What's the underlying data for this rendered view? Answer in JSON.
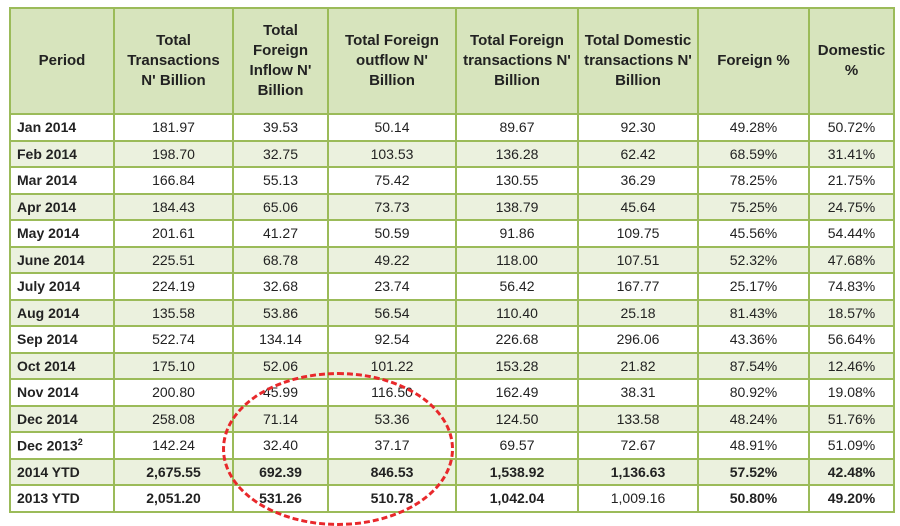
{
  "headers": [
    "Period",
    "Total Transactions N' Billion",
    "Total Foreign Inflow N' Billion",
    "Total Foreign outflow N' Billion",
    "Total Foreign transactions N' Billion",
    "Total Domestic transactions N' Billion",
    "Foreign %",
    "Domestic %"
  ],
  "rows": [
    {
      "period": "Jan 2014",
      "sup": "",
      "values": [
        "181.97",
        "39.53",
        "50.14",
        "89.67",
        "92.30",
        "49.28%",
        "50.72%"
      ]
    },
    {
      "period": "Feb 2014",
      "sup": "",
      "values": [
        "198.70",
        "32.75",
        "103.53",
        "136.28",
        "62.42",
        "68.59%",
        "31.41%"
      ]
    },
    {
      "period": "Mar 2014",
      "sup": "",
      "values": [
        "166.84",
        "55.13",
        "75.42",
        "130.55",
        "36.29",
        "78.25%",
        "21.75%"
      ]
    },
    {
      "period": "Apr 2014",
      "sup": "",
      "values": [
        "184.43",
        "65.06",
        "73.73",
        "138.79",
        "45.64",
        "75.25%",
        "24.75%"
      ]
    },
    {
      "period": "May 2014",
      "sup": "",
      "values": [
        "201.61",
        "41.27",
        "50.59",
        "91.86",
        "109.75",
        "45.56%",
        "54.44%"
      ]
    },
    {
      "period": "June 2014",
      "sup": "",
      "values": [
        "225.51",
        "68.78",
        "49.22",
        "118.00",
        "107.51",
        "52.32%",
        "47.68%"
      ]
    },
    {
      "period": "July 2014",
      "sup": "",
      "values": [
        "224.19",
        "32.68",
        "23.74",
        "56.42",
        "167.77",
        "25.17%",
        "74.83%"
      ]
    },
    {
      "period": "Aug 2014",
      "sup": "",
      "values": [
        "135.58",
        "53.86",
        "56.54",
        "110.40",
        "25.18",
        "81.43%",
        "18.57%"
      ]
    },
    {
      "period": "Sep 2014",
      "sup": "",
      "values": [
        "522.74",
        "134.14",
        "92.54",
        "226.68",
        "296.06",
        "43.36%",
        "56.64%"
      ]
    },
    {
      "period": "Oct 2014",
      "sup": "",
      "values": [
        "175.10",
        "52.06",
        "101.22",
        "153.28",
        "21.82",
        "87.54%",
        "12.46%"
      ]
    },
    {
      "period": "Nov 2014",
      "sup": "",
      "values": [
        "200.80",
        "45.99",
        "116.50",
        "162.49",
        "38.31",
        "80.92%",
        "19.08%"
      ]
    },
    {
      "period": "Dec 2014",
      "sup": "",
      "values": [
        "258.08",
        "71.14",
        "53.36",
        "124.50",
        "133.58",
        "48.24%",
        "51.76%"
      ]
    },
    {
      "period": "Dec  2013",
      "sup": "2",
      "values": [
        "142.24",
        "32.40",
        "37.17",
        "69.57",
        "72.67",
        "48.91%",
        "51.09%"
      ]
    },
    {
      "period": "2014 YTD",
      "sup": "",
      "values": [
        "2,675.55",
        "692.39",
        "846.53",
        "1,538.92",
        "1,136.63",
        "57.52%",
        "42.48%"
      ]
    },
    {
      "period": "2013 YTD",
      "sup": "",
      "values": [
        "2,051.20",
        "531.26",
        "510.78",
        "1,042.04",
        "1,009.16",
        "50.80%",
        "49.20%"
      ]
    }
  ],
  "colors": {
    "border": "#9bbb59",
    "header": "#d7e4bd",
    "shade": "#ebf1de",
    "annotation": "#e8282b"
  }
}
